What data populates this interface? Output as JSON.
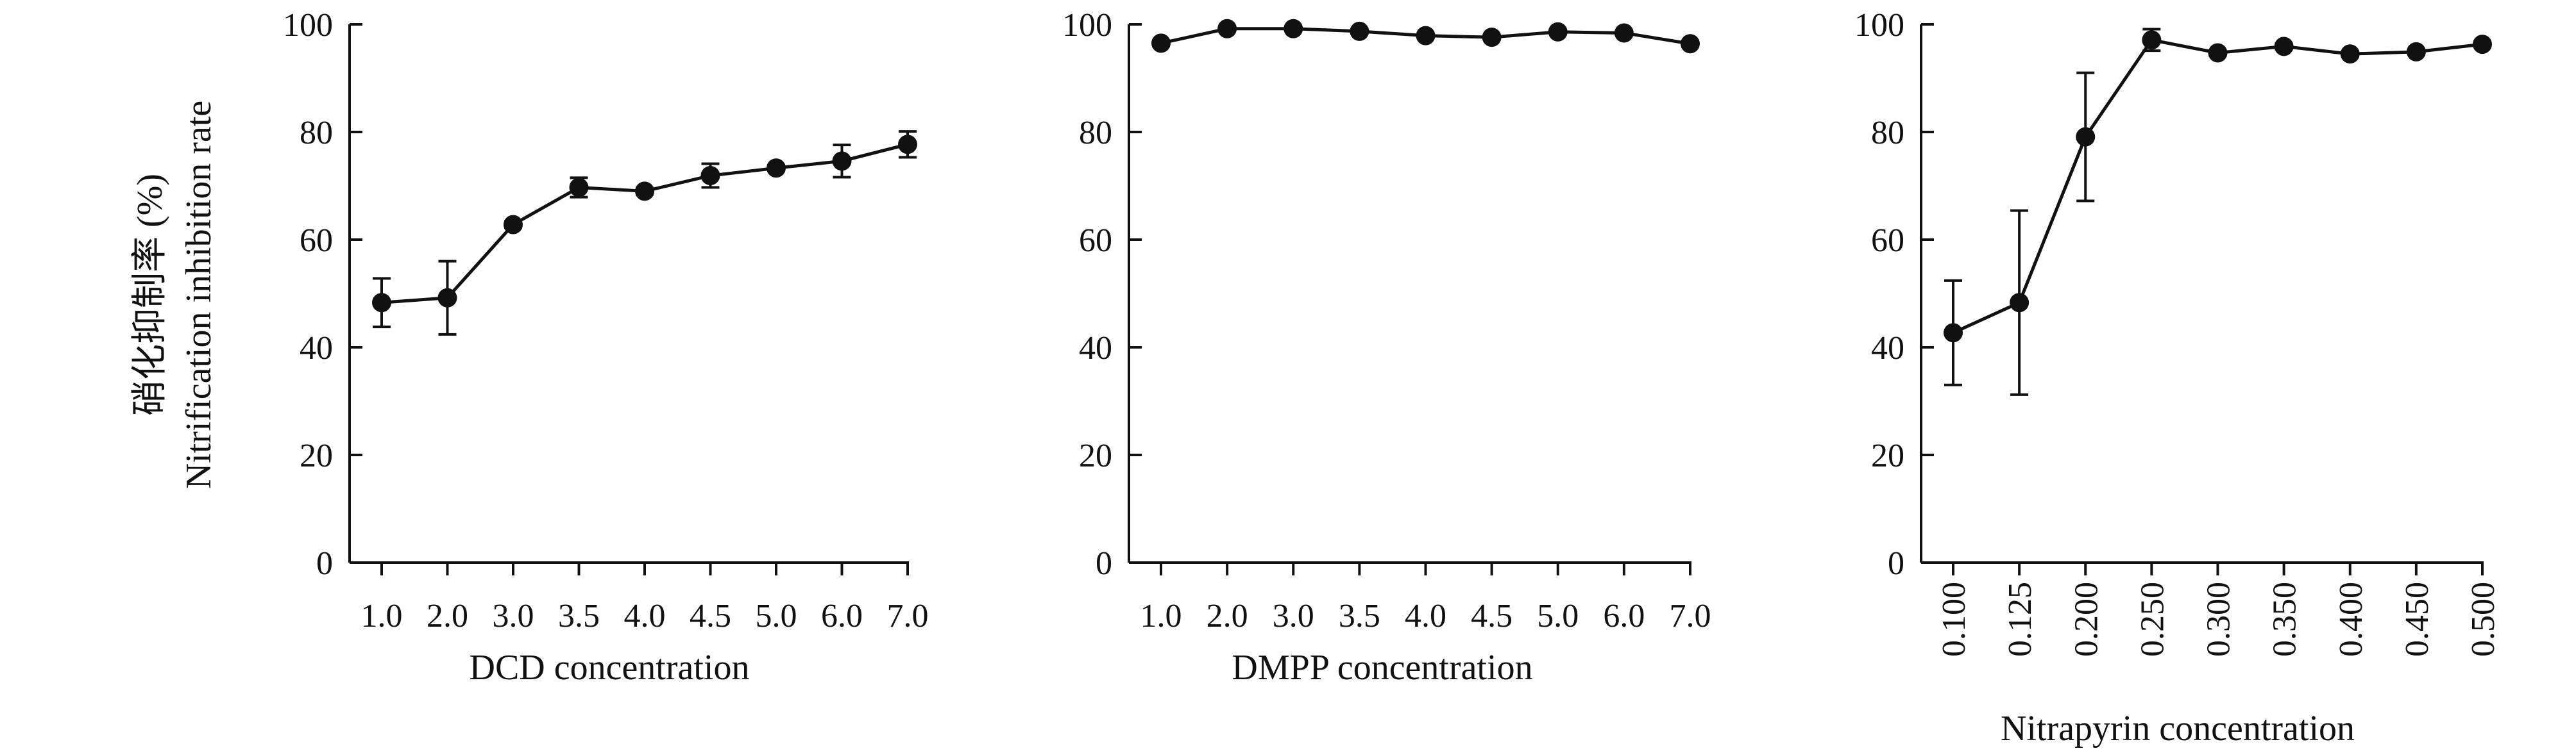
{
  "chart_data": [
    {
      "type": "line",
      "xlabel": "DCD concentration",
      "ylabel_cn": "硝化抑制率 (%)",
      "ylabel": "Nitrification inhibition rate",
      "ylim": [
        0,
        100
      ],
      "yticks": [
        "0",
        "20",
        "40",
        "60",
        "80",
        "100"
      ],
      "categories": [
        "1.0",
        "2.0",
        "3.0",
        "3.5",
        "4.0",
        "4.5",
        "5.0",
        "6.0",
        "7.0"
      ],
      "values": [
        48.3,
        49.2,
        62.8,
        69.7,
        69.0,
        71.9,
        73.3,
        74.6,
        77.7
      ],
      "errors": [
        4.5,
        6.8,
        0.6,
        1.8,
        0.6,
        2.2,
        0.5,
        3.0,
        2.4
      ],
      "grid": false
    },
    {
      "type": "line",
      "xlabel": "DMPP concentration",
      "ylim": [
        0,
        100
      ],
      "yticks": [
        "0",
        "20",
        "40",
        "60",
        "80",
        "100"
      ],
      "categories": [
        "1.0",
        "2.0",
        "3.0",
        "3.5",
        "4.0",
        "4.5",
        "5.0",
        "6.0",
        "7.0"
      ],
      "values": [
        96.5,
        99.2,
        99.2,
        98.7,
        97.9,
        97.6,
        98.6,
        98.4,
        96.4
      ],
      "errors": [
        0.5,
        0.3,
        0.3,
        0.3,
        0.3,
        0.3,
        0.3,
        0.3,
        0.5
      ],
      "grid": false
    },
    {
      "type": "line",
      "xlabel": "Nitrapyrin concentration",
      "ylim": [
        0,
        100
      ],
      "yticks": [
        "0",
        "20",
        "40",
        "60",
        "80",
        "100"
      ],
      "categories": [
        "0.100",
        "0.125",
        "0.200",
        "0.250",
        "0.300",
        "0.350",
        "0.400",
        "0.450",
        "0.500"
      ],
      "values": [
        42.7,
        48.3,
        79.1,
        97.1,
        94.7,
        95.9,
        94.5,
        94.9,
        96.3
      ],
      "errors": [
        9.7,
        17.1,
        11.9,
        2.0,
        0.5,
        0.5,
        0.5,
        0.5,
        0.5
      ],
      "grid": false
    }
  ],
  "colors": {
    "line": "#111111",
    "marker": "#111111",
    "axis": "#111111"
  }
}
